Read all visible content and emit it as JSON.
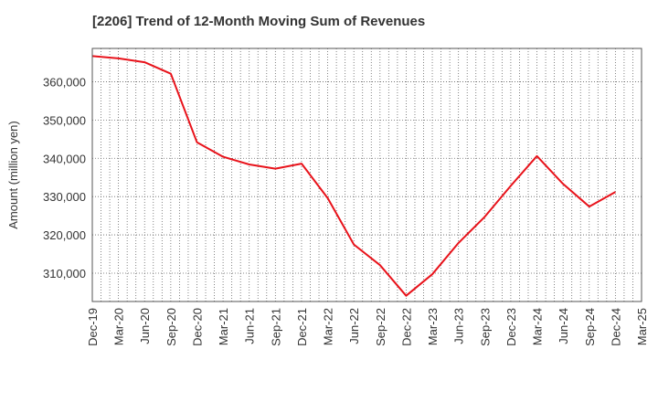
{
  "chart_data": {
    "type": "line",
    "title": "[2206]  Trend of 12-Month Moving Sum of Revenues",
    "xlabel": "",
    "ylabel": "Amount (million yen)",
    "x_tick_labels": [
      "Dec-19",
      "Mar-20",
      "Jun-20",
      "Sep-20",
      "Dec-20",
      "Mar-21",
      "Jun-21",
      "Sep-21",
      "Dec-21",
      "Mar-22",
      "Jun-22",
      "Sep-22",
      "Dec-22",
      "Mar-23",
      "Jun-23",
      "Sep-23",
      "Dec-23",
      "Mar-24",
      "Jun-24",
      "Sep-24",
      "Dec-24",
      "Mar-25"
    ],
    "y_ticks": [
      310000,
      320000,
      330000,
      340000,
      350000,
      360000
    ],
    "y_tick_labels": [
      "310,000",
      "320,000",
      "330,000",
      "340,000",
      "350,000",
      "360,000"
    ],
    "ylim": [
      302600,
      368700
    ],
    "grid": true,
    "line_color": "#e8131b",
    "series": [
      {
        "x": [
          "Dec-19",
          "Mar-20",
          "Jun-20",
          "Sep-20",
          "Dec-20",
          "Mar-21",
          "Jun-21",
          "Sep-21",
          "Dec-21",
          "Mar-22",
          "Jun-22",
          "Sep-22",
          "Dec-22",
          "Mar-23",
          "Jun-23",
          "Sep-23",
          "Dec-23",
          "Mar-24",
          "Jun-24",
          "Sep-24",
          "Dec-24"
        ],
        "values": [
          366700,
          366100,
          365100,
          362100,
          344200,
          340400,
          338400,
          337300,
          338600,
          329600,
          317500,
          312100,
          304100,
          309700,
          317900,
          324700,
          332800,
          340600,
          333300,
          327400,
          331200
        ]
      }
    ]
  }
}
